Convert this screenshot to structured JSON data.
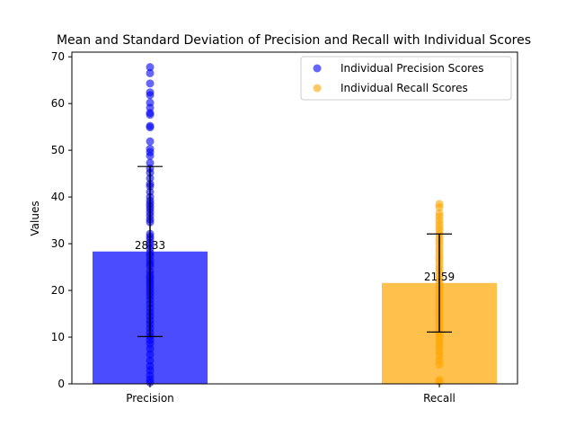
{
  "chart_data": {
    "type": "bar",
    "title": "Mean and Standard Deviation of Precision and Recall with Individual Scores",
    "xlabel": "",
    "ylabel": "Values",
    "ylim": [
      0,
      71
    ],
    "yticks": [
      0,
      10,
      20,
      30,
      40,
      50,
      60,
      70
    ],
    "categories": [
      "Precision",
      "Recall"
    ],
    "values": [
      28.33,
      21.59
    ],
    "value_labels": [
      "28.33",
      "21.59"
    ],
    "std": [
      18.2,
      10.5
    ],
    "bar_colors": [
      "#0000ff",
      "#ffa500"
    ],
    "bar_alpha": 0.7,
    "errorbar_color": "#000000",
    "legend": {
      "position": "upper right",
      "entries": [
        "Individual Precision Scores",
        "Individual Recall Scores"
      ],
      "colors": [
        "#0000ff",
        "#ffa500"
      ]
    },
    "scatter": [
      {
        "name": "Individual Precision Scores",
        "category": "Precision",
        "color": "#0000ff",
        "values": [
          67.8,
          66.5,
          64.3,
          62.4,
          61.8,
          60.2,
          59.1,
          58.0,
          57.6,
          55.2,
          54.9,
          51.9,
          50.3,
          49.6,
          48.8,
          47.3,
          46.1,
          45.2,
          44.0,
          42.8,
          42.3,
          41.1,
          40.0,
          39.2,
          38.6,
          38.0,
          37.4,
          36.7,
          36.0,
          35.2,
          34.6,
          32.1,
          31.5,
          31.0,
          30.2,
          29.6,
          28.9,
          28.0,
          27.4,
          26.5,
          25.8,
          25.2,
          24.1,
          23.3,
          22.7,
          22.1,
          21.5,
          20.9,
          20.2,
          19.5,
          18.8,
          18.0,
          17.1,
          16.2,
          15.3,
          14.5,
          13.6,
          12.8,
          11.9,
          11.0,
          10.2,
          9.4,
          8.6,
          7.5,
          6.3,
          5.0,
          3.8,
          2.9,
          1.8,
          0.9,
          0.3
        ]
      },
      {
        "name": "Individual Recall Scores",
        "category": "Recall",
        "color": "#ffa500",
        "values": [
          38.5,
          37.8,
          36.5,
          35.8,
          35.0,
          34.2,
          33.5,
          32.8,
          32.0,
          31.2,
          30.5,
          29.8,
          29.0,
          28.3,
          27.5,
          26.8,
          26.1,
          25.3,
          24.6,
          23.9,
          23.1,
          22.4,
          21.7,
          20.9,
          20.2,
          19.5,
          18.7,
          18.0,
          17.3,
          16.5,
          15.8,
          15.1,
          14.4,
          13.6,
          12.9,
          12.2,
          11.4,
          10.7,
          10.0,
          9.2,
          8.5,
          7.8,
          6.9,
          6.0,
          5.0,
          4.1,
          0.8,
          0.5
        ]
      }
    ]
  }
}
